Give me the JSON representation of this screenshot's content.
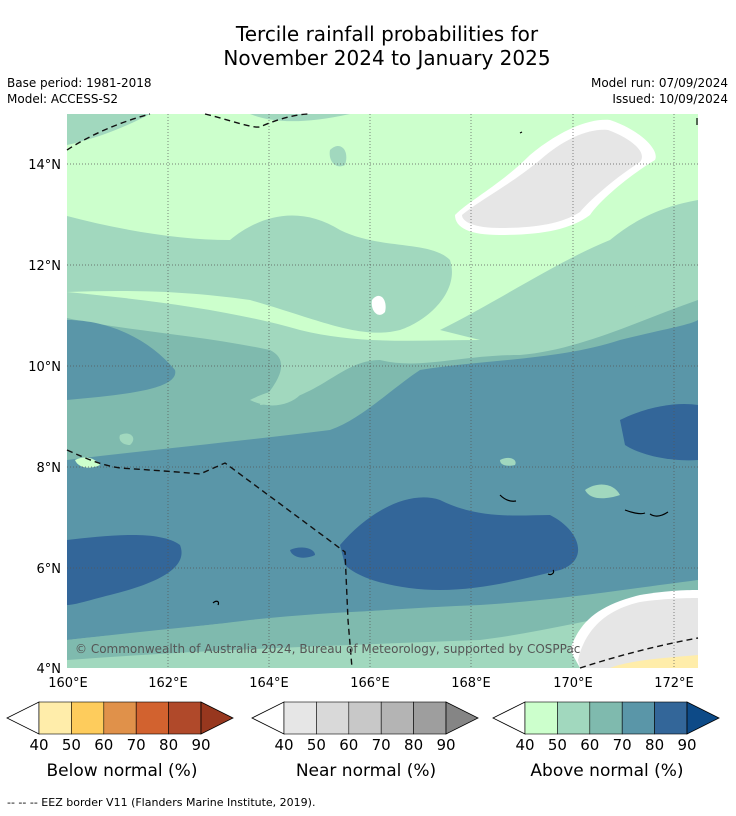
{
  "title": {
    "line1": "Tercile rainfall probabilities for",
    "line2": "November 2024 to January 2025"
  },
  "meta": {
    "base_period": "Base period: 1981-2018",
    "model": "Model: ACCESS-S2",
    "model_run": "Model run: 07/09/2024",
    "issued": "Issued: 10/09/2024"
  },
  "map": {
    "copyright": "© Commonwealth of Australia 2024, Bureau of Meteorology, supported by COSPPac",
    "lat_labels": [
      "14°N",
      "12°N",
      "10°N",
      "8°N",
      "6°N",
      "4°N"
    ],
    "lon_labels": [
      "160°E",
      "162°E",
      "164°E",
      "166°E",
      "168°E",
      "170°E",
      "172°E"
    ]
  },
  "colorbars": [
    {
      "label": "Below normal (%)",
      "ticks": [
        "40",
        "50",
        "60",
        "70",
        "80",
        "90"
      ],
      "colors": [
        "#ffedaa",
        "#fecc5c",
        "#e0914a",
        "#d2622f",
        "#b0492a",
        "#97371e"
      ]
    },
    {
      "label": "Near normal (%)",
      "ticks": [
        "40",
        "50",
        "60",
        "70",
        "80",
        "90"
      ],
      "colors": [
        "#e6e6e6",
        "#d9d9d9",
        "#c8c8c8",
        "#b4b4b4",
        "#9e9e9e",
        "#858585"
      ]
    },
    {
      "label": "Above normal (%)",
      "ticks": [
        "40",
        "50",
        "60",
        "70",
        "80",
        "90"
      ],
      "colors": [
        "#ccffcc",
        "#a1d8be",
        "#7fbaae",
        "#5a96a8",
        "#336699",
        "#0d4a87"
      ]
    }
  ],
  "footer": "--  --  -- EEZ border V11 (Flanders Marine Institute, 2019)."
}
